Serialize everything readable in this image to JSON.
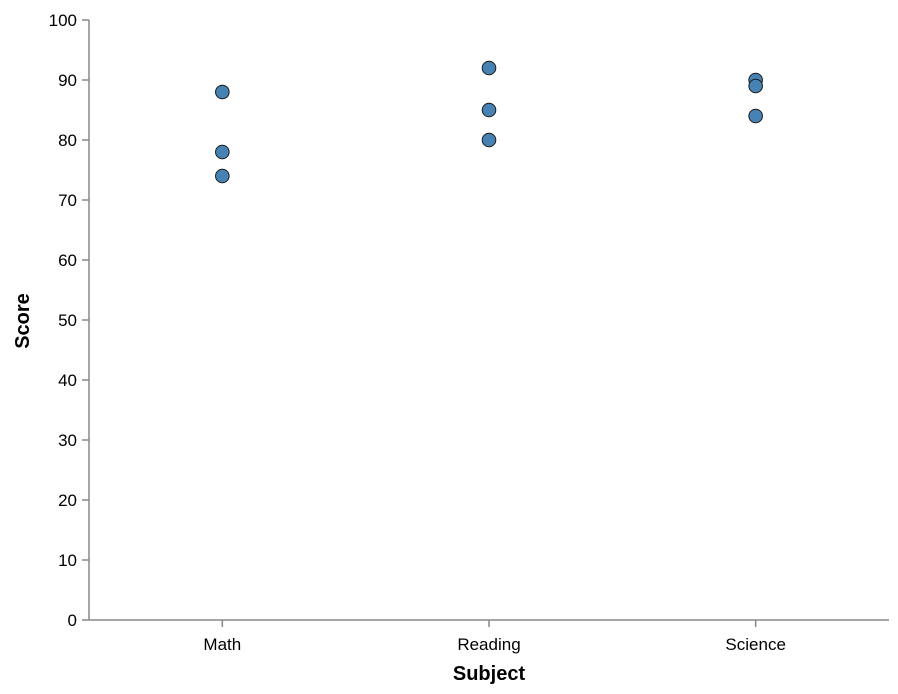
{
  "chart_data": {
    "type": "scatter",
    "xlabel": "Subject",
    "ylabel": "Score",
    "categories": [
      "Math",
      "Reading",
      "Science"
    ],
    "ylim": [
      0,
      100
    ],
    "yticks": [
      0,
      10,
      20,
      30,
      40,
      50,
      60,
      70,
      80,
      90,
      100
    ],
    "grid": false,
    "point_color": "#4682b4",
    "point_stroke": "#1a1a1a",
    "axis_color": "#888888",
    "points": [
      {
        "x": "Math",
        "y": 88
      },
      {
        "x": "Math",
        "y": 78
      },
      {
        "x": "Math",
        "y": 74
      },
      {
        "x": "Reading",
        "y": 92
      },
      {
        "x": "Reading",
        "y": 85
      },
      {
        "x": "Reading",
        "y": 80
      },
      {
        "x": "Science",
        "y": 90
      },
      {
        "x": "Science",
        "y": 89
      },
      {
        "x": "Science",
        "y": 84
      }
    ]
  }
}
